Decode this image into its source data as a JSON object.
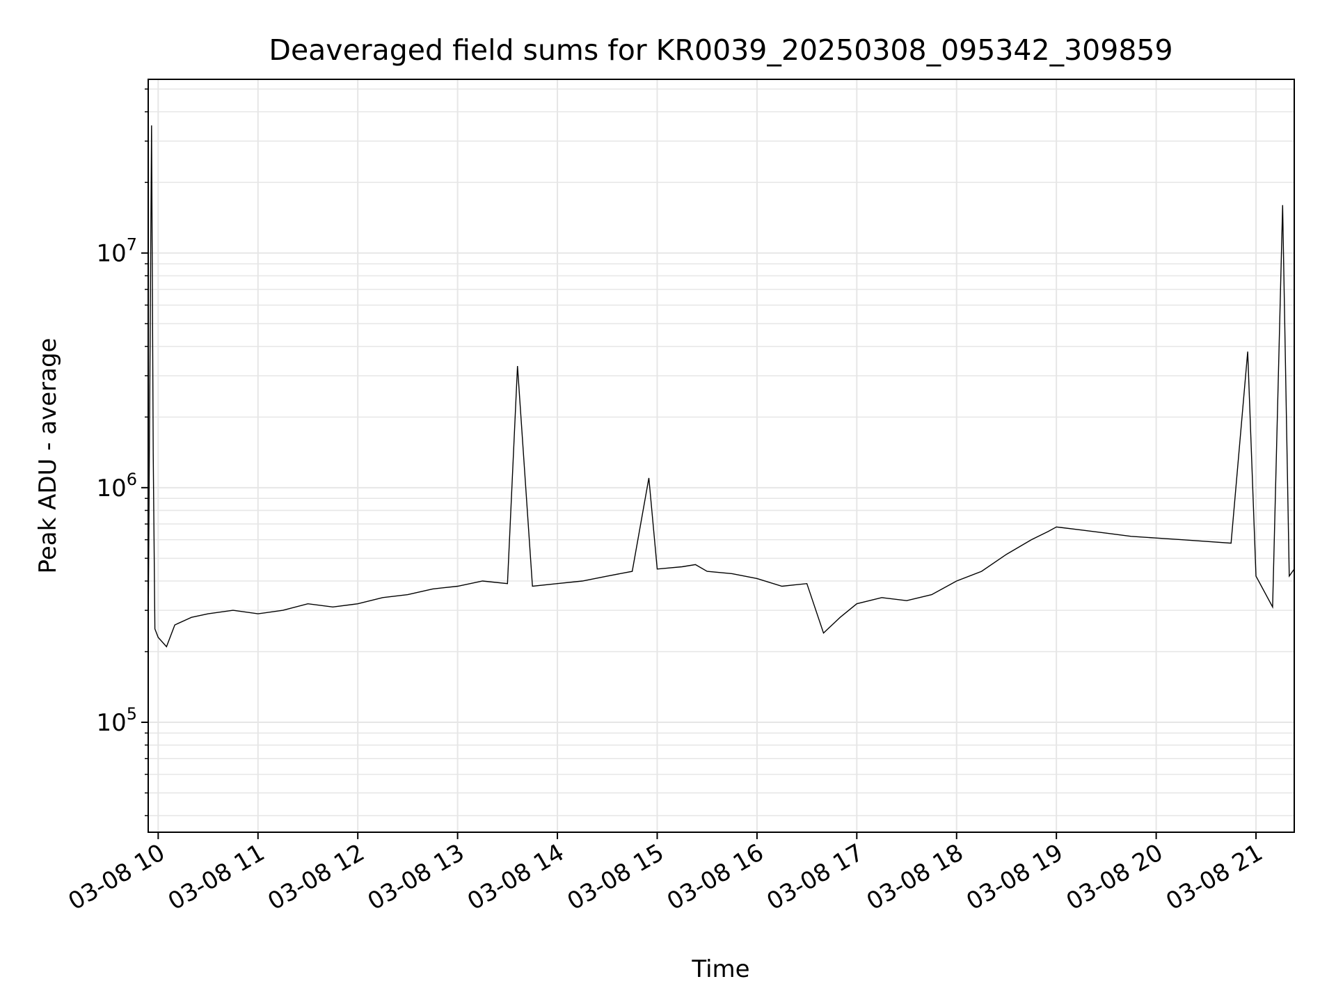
{
  "chart_data": {
    "type": "line",
    "title": "Deaveraged field sums for KR0039_20250308_095342_309859",
    "xlabel": "Time",
    "ylabel": "Peak ADU - average",
    "yscale": "log",
    "ylim": [
      34000,
      55000000
    ],
    "xlim": [
      "2025-03-08 09:54",
      "2025-03-08 21:23"
    ],
    "grid": true,
    "legend": "none",
    "line_color": "#000000",
    "x_ticks": [
      {
        "value": "2025-03-08 10:00",
        "label": "03-08 10"
      },
      {
        "value": "2025-03-08 11:00",
        "label": "03-08 11"
      },
      {
        "value": "2025-03-08 12:00",
        "label": "03-08 12"
      },
      {
        "value": "2025-03-08 13:00",
        "label": "03-08 13"
      },
      {
        "value": "2025-03-08 14:00",
        "label": "03-08 14"
      },
      {
        "value": "2025-03-08 15:00",
        "label": "03-08 15"
      },
      {
        "value": "2025-03-08 16:00",
        "label": "03-08 16"
      },
      {
        "value": "2025-03-08 17:00",
        "label": "03-08 17"
      },
      {
        "value": "2025-03-08 18:00",
        "label": "03-08 18"
      },
      {
        "value": "2025-03-08 19:00",
        "label": "03-08 19"
      },
      {
        "value": "2025-03-08 20:00",
        "label": "03-08 20"
      },
      {
        "value": "2025-03-08 21:00",
        "label": "03-08 21"
      }
    ],
    "y_ticks": [
      {
        "value": 100000,
        "base": "10",
        "exp": "5"
      },
      {
        "value": 1000000,
        "base": "10",
        "exp": "6"
      },
      {
        "value": 10000000,
        "base": "10",
        "exp": "7"
      }
    ],
    "series": [
      {
        "x": [
          "2025-03-08 09:54",
          "2025-03-08 09:56",
          "2025-03-08 09:57",
          "2025-03-08 09:58",
          "2025-03-08 10:00",
          "2025-03-08 10:05",
          "2025-03-08 10:10",
          "2025-03-08 10:20",
          "2025-03-08 10:30",
          "2025-03-08 10:45",
          "2025-03-08 11:00",
          "2025-03-08 11:15",
          "2025-03-08 11:30",
          "2025-03-08 11:45",
          "2025-03-08 12:00",
          "2025-03-08 12:15",
          "2025-03-08 12:30",
          "2025-03-08 12:45",
          "2025-03-08 13:00",
          "2025-03-08 13:15",
          "2025-03-08 13:30",
          "2025-03-08 13:36",
          "2025-03-08 13:45",
          "2025-03-08 14:00",
          "2025-03-08 14:15",
          "2025-03-08 14:30",
          "2025-03-08 14:45",
          "2025-03-08 14:55",
          "2025-03-08 15:00",
          "2025-03-08 15:15",
          "2025-03-08 15:23",
          "2025-03-08 15:30",
          "2025-03-08 15:45",
          "2025-03-08 16:00",
          "2025-03-08 16:15",
          "2025-03-08 16:30",
          "2025-03-08 16:40",
          "2025-03-08 16:50",
          "2025-03-08 17:00",
          "2025-03-08 17:15",
          "2025-03-08 17:30",
          "2025-03-08 17:45",
          "2025-03-08 18:00",
          "2025-03-08 18:15",
          "2025-03-08 18:30",
          "2025-03-08 18:45",
          "2025-03-08 18:55",
          "2025-03-08 19:00",
          "2025-03-08 19:15",
          "2025-03-08 19:30",
          "2025-03-08 19:45",
          "2025-03-08 20:00",
          "2025-03-08 20:15",
          "2025-03-08 20:30",
          "2025-03-08 20:45",
          "2025-03-08 20:55",
          "2025-03-08 21:00",
          "2025-03-08 21:10",
          "2025-03-08 21:16",
          "2025-03-08 21:20",
          "2025-03-08 21:23"
        ],
        "y": [
          250000,
          35000000,
          1400000,
          250000,
          230000,
          210000,
          260000,
          280000,
          290000,
          300000,
          290000,
          300000,
          320000,
          310000,
          320000,
          340000,
          350000,
          370000,
          380000,
          400000,
          390000,
          3300000,
          380000,
          390000,
          400000,
          420000,
          440000,
          1100000,
          450000,
          460000,
          470000,
          440000,
          430000,
          410000,
          380000,
          390000,
          240000,
          280000,
          320000,
          340000,
          330000,
          350000,
          400000,
          440000,
          520000,
          600000,
          650000,
          680000,
          660000,
          640000,
          620000,
          610000,
          600000,
          590000,
          580000,
          3800000,
          420000,
          310000,
          16000000,
          420000,
          450000
        ]
      }
    ]
  }
}
